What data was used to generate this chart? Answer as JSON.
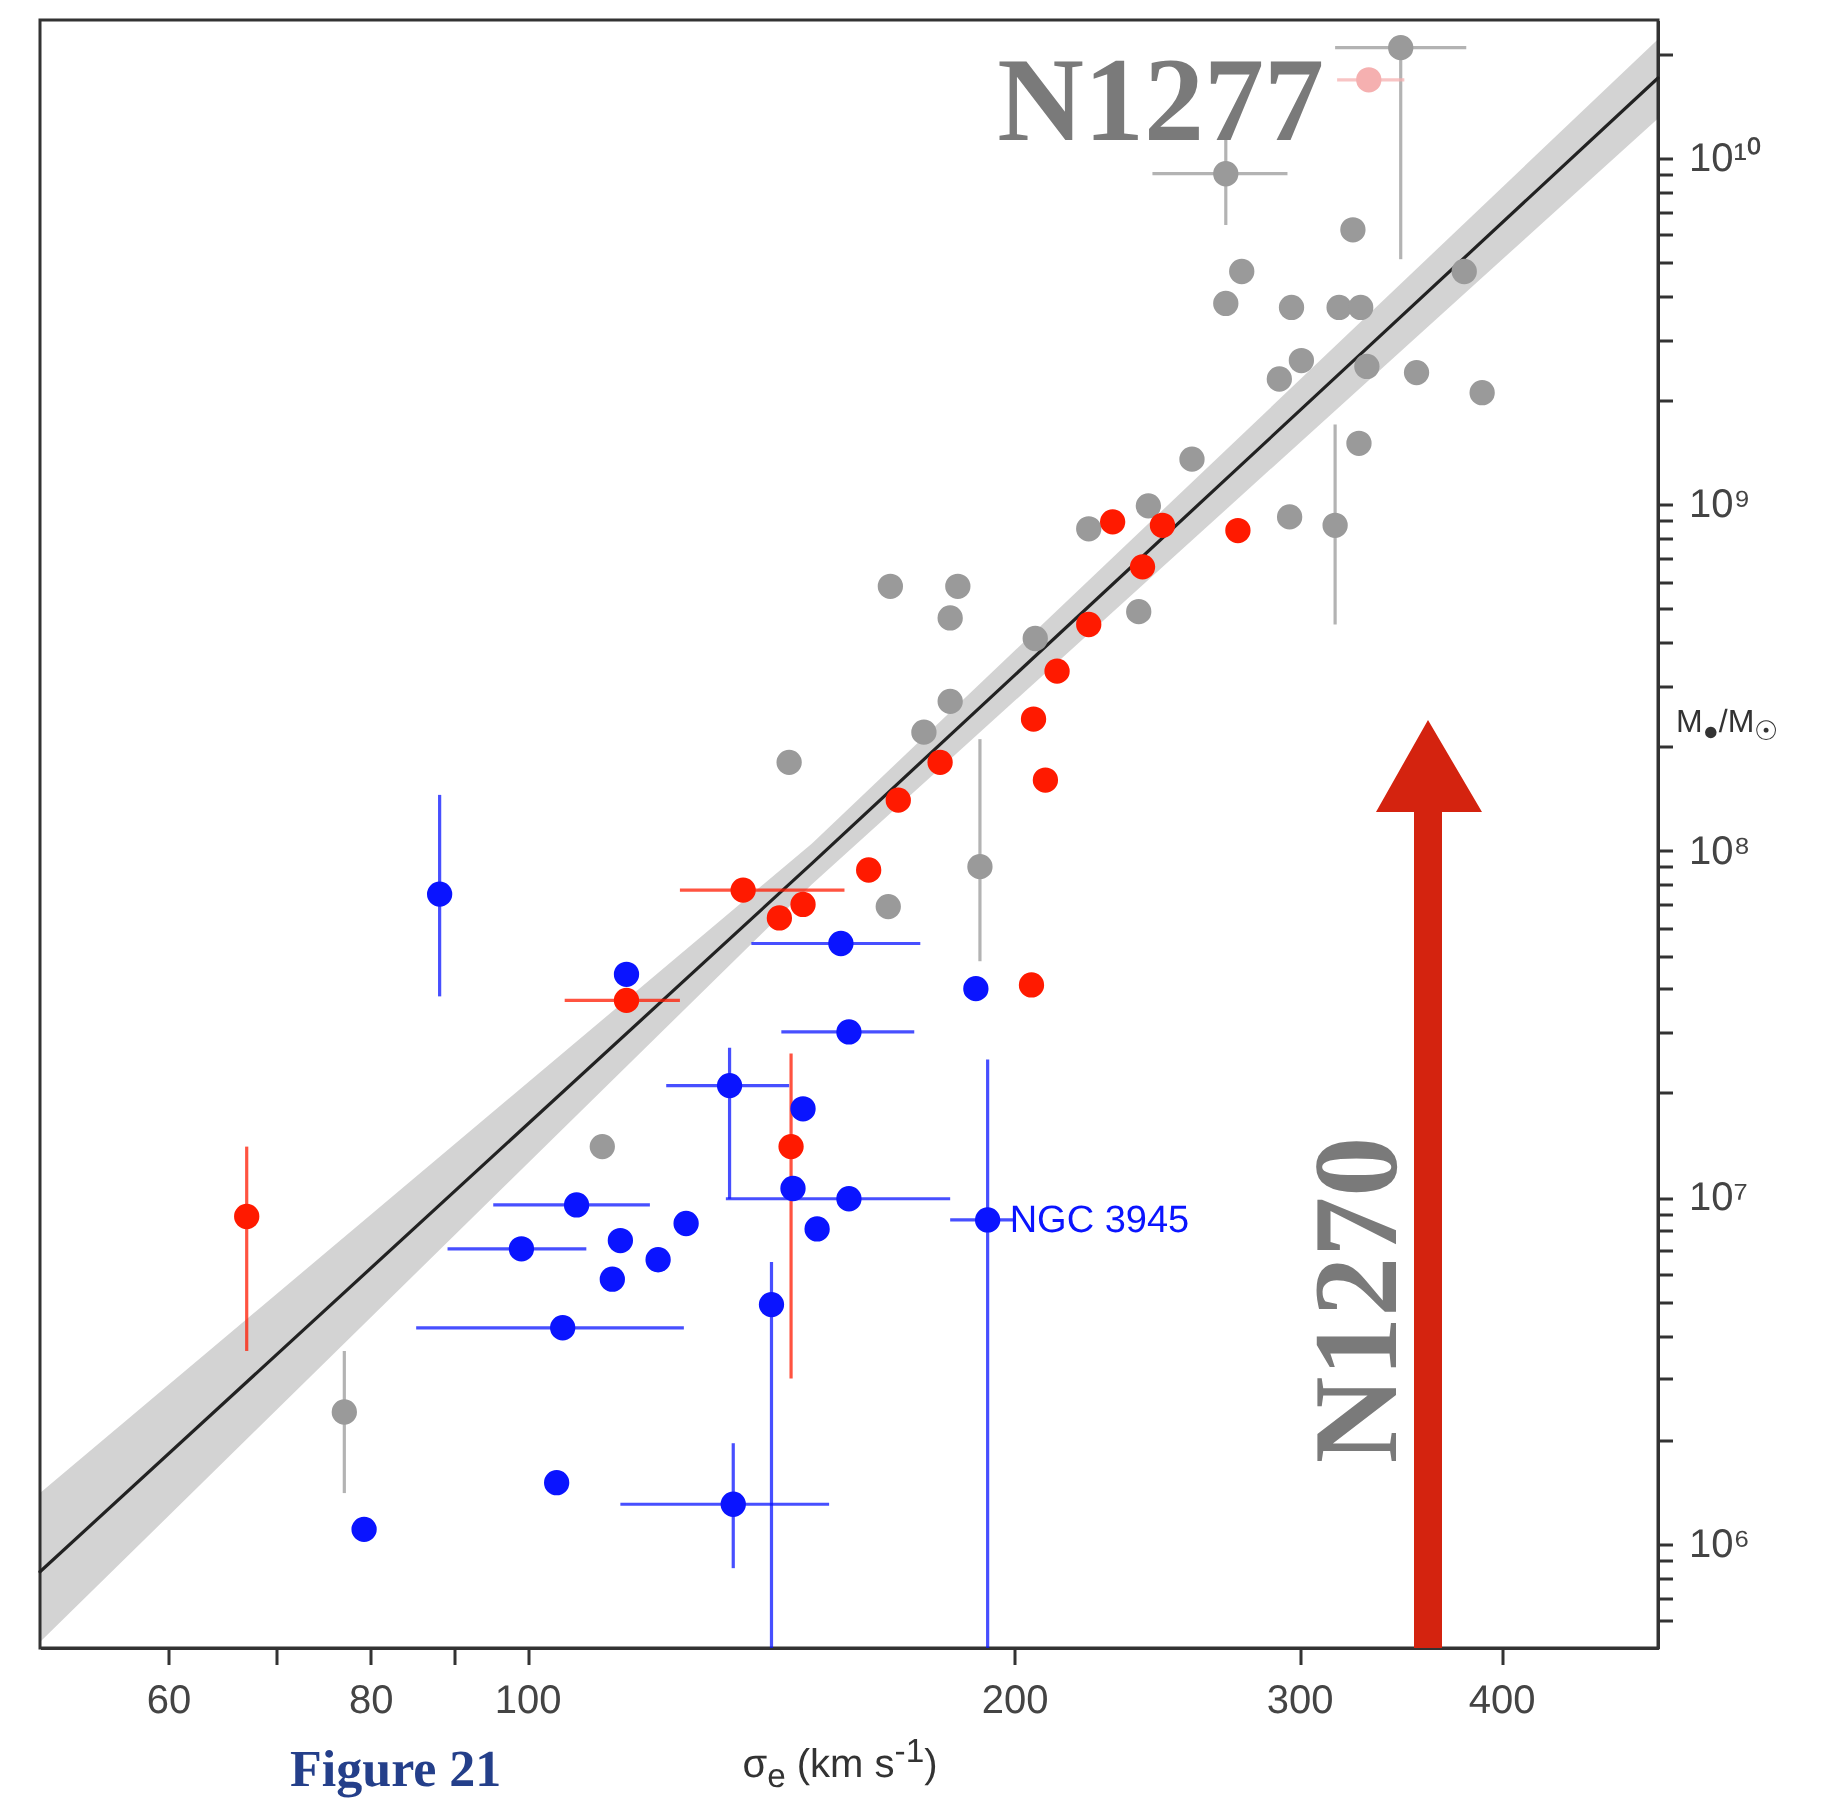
{
  "chart_data": {
    "type": "scatter",
    "xlabel": "σ$_{e}$  (km s$^{-1}$)",
    "ylabel": "M$_{●}$/M$_{☉}$",
    "log": "xy",
    "marker": "circle",
    "xlim": [
      50,
      500
    ],
    "xticks": [
      60,
      {
        "value": 70,
        "label": null
      },
      80,
      {
        "value": 90,
        "label": null
      },
      100,
      200,
      300,
      400
    ],
    "ylim": [
      500000.0,
      25000000000.0
    ],
    "yticks": [
      {
        "value": 600000.0,
        "label": null
      },
      {
        "value": 700000.0,
        "label": null
      },
      {
        "value": 800000.0,
        "label": null
      },
      {
        "value": 900000.0,
        "label": null
      },
      {
        "value": 1000000.0,
        "label": "10⁶"
      },
      {
        "value": 2000000.0,
        "label": null
      },
      {
        "value": 3000000.0,
        "label": null
      },
      {
        "value": 4000000.0,
        "label": null
      },
      {
        "value": 5000000.0,
        "label": null
      },
      {
        "value": 6000000.0,
        "label": null
      },
      {
        "value": 7000000.0,
        "label": null
      },
      {
        "value": 8000000.0,
        "label": null
      },
      {
        "value": 9000000.0,
        "label": null
      },
      {
        "value": 10000000.0,
        "label": "10⁷"
      },
      {
        "value": 20000000.0,
        "label": null
      },
      {
        "value": 30000000.0,
        "label": null
      },
      {
        "value": 40000000.0,
        "label": null
      },
      {
        "value": 50000000.0,
        "label": null
      },
      {
        "value": 60000000.0,
        "label": null
      },
      {
        "value": 70000000.0,
        "label": null
      },
      {
        "value": 80000000.0,
        "label": null
      },
      {
        "value": 90000000.0,
        "label": null
      },
      {
        "value": 100000000.0,
        "label": "10⁸"
      },
      {
        "value": 200000000.0,
        "label": null
      },
      {
        "value": 300000000.0,
        "label": null
      },
      {
        "value": 400000000.0,
        "label": null
      },
      {
        "value": 500000000.0,
        "label": null
      },
      {
        "value": 600000000.0,
        "label": null
      },
      {
        "value": 700000000.0,
        "label": null
      },
      {
        "value": 800000000.0,
        "label": null
      },
      {
        "value": 900000000.0,
        "label": null
      },
      {
        "value": 1000000000.0,
        "label": "10⁹"
      },
      {
        "value": 2000000000.0,
        "label": null
      },
      {
        "value": 3000000000.0,
        "label": null
      },
      {
        "value": 4000000000.0,
        "label": null
      },
      {
        "value": 5000000000.0,
        "label": null
      },
      {
        "value": 6000000000.0,
        "label": null
      },
      {
        "value": 7000000000.0,
        "label": null
      },
      {
        "value": 8000000000.0,
        "label": null
      },
      {
        "value": 9000000000.0,
        "label": null
      },
      {
        "value": 10000000000.0,
        "label": "10¹⁰"
      },
      {
        "value": 20000000000.0,
        "label": null
      }
    ],
    "series": [
      {
        "type": "line",
        "marker": "none",
        "color": "#222222",
        "x": [
          50,
          150,
          500
        ],
        "values": [
          830000.0,
          92000000.0,
          17000000000.0
        ],
        "lower": [
          520000.0,
          80000000.0,
          13000000000.0
        ],
        "upper": [
          1400000.0,
          105000000.0,
          22000000000.0
        ]
      },
      {
        "color": "#9a9a9a",
        "x": [
          346.7,
          270.3,
          323.9,
          276.5,
          270.3,
          296.8,
          317.6,
          327.5,
          301.0,
          291.7,
          330.4,
          354.6,
          389.3,
          326.7,
          379.5,
          257.6,
          296.0,
          315.8,
          242.1,
          222.4,
          238.8,
          206.1,
          184.6,
          167.7,
          182.6,
          182.6,
          175.9,
          190.5,
          167.2,
          145.2,
          111.3,
          77.1
        ],
        "values": [
          20800000000.0,
          9000000000.0,
          6200000000.0,
          4700000000.0,
          3800000000.0,
          3700000000.0,
          3700000000.0,
          3700000000.0,
          2600000000.0,
          2300000000.0,
          2500000000.0,
          2400000000.0,
          2100000000.0,
          1500000000.0,
          4700000000.0,
          1350000000.0,
          920000000.0,
          870000000.0,
          990000000.0,
          850000000.0,
          490000000.0,
          410000000.0,
          580000000.0,
          580000000.0,
          470000000.0,
          270000000.0,
          220000000.0,
          90000000.0,
          69000000.0,
          180000000.0,
          14000000.0,
          2400000.0
        ],
        "errors": [
          [
            5100000000.0,
            20800000000.0
          ],
          [
            6400000000.0,
            11400000000.0
          ],
          null,
          null,
          null,
          null,
          null,
          null,
          null,
          null,
          null,
          null,
          null,
          null,
          null,
          null,
          null,
          [
            450000000.0,
            1700000000.0
          ],
          null,
          null,
          null,
          null,
          null,
          null,
          null,
          null,
          null,
          [
            48000000.0,
            210000000.0
          ],
          null,
          null,
          null,
          [
            1400000.0,
            3600000.0
          ]
        ],
        "xerrors": [
          [
            315.8,
            380.6
          ],
          [
            243.5,
            295.1
          ],
          null,
          null,
          null,
          null,
          null,
          null,
          null,
          null,
          null,
          null,
          null,
          null,
          null,
          null,
          null,
          null,
          null,
          null,
          null,
          null,
          null,
          null,
          null,
          null,
          null,
          null,
          null,
          null,
          null,
          null
        ]
      },
      {
        "color": "#f5b0b0",
        "x": [
          331.3
        ],
        "values": [
          16800000000.0
        ],
        "xerrors": [
          [
            316.7,
            348.5
          ]
        ]
      },
      {
        "color": "#ff1a00",
        "x": [
          67.1,
          115.2,
          136.0,
          143.2,
          148.1,
          145.6,
          162.6,
          169.6,
          180.0,
          205.6,
          209.1,
          212.6,
          222.4,
          230.1,
          240.1,
          247.0,
          275.0,
          205.0
        ],
        "values": [
          8800000.0,
          37000000.0,
          77000000.0,
          64000000.0,
          70000000.0,
          14000000.0,
          88000000.0,
          140000000.0,
          180000000.0,
          240000000.0,
          160000000.0,
          330000000.0,
          450000000.0,
          890000000.0,
          660000000.0,
          870000000.0,
          840000000.0,
          41000000.0
        ],
        "errors": [
          [
            3600000.0,
            14000000.0
          ],
          null,
          null,
          null,
          null,
          [
            3000000.0,
            26000000.0
          ],
          null,
          null,
          null,
          null,
          null,
          null,
          null,
          null,
          null,
          null,
          null,
          null
        ],
        "xerrors": [
          null,
          [
            105.5,
            124.3
          ],
          [
            124.3,
            157.1
          ],
          null,
          null,
          null,
          null,
          null,
          null,
          null,
          null,
          null,
          null,
          null,
          null,
          null,
          null,
          null
        ]
      },
      {
        "color": "#0a14ff",
        "x": [
          88.3,
          115.2,
          156.3,
          158.1,
          133.4,
          148.1,
          146.0,
          158.1,
          151.1,
          107.3,
          125.4,
          99.2,
          114.2,
          120.5,
          112.9,
          141.6,
          105.2,
          104.3,
          79.3,
          134.1,
          189.4,
          192.6
        ],
        "values": [
          75000000.0,
          44000000.0,
          54000000.0,
          30000000.0,
          21000000.0,
          18000000.0,
          10600000.0,
          9900000.0,
          8100000.0,
          9500000.0,
          8400000.0,
          7100000.0,
          7500000.0,
          6600000.0,
          5800000.0,
          4900000.0,
          4200000.0,
          1500000.0,
          1100000.0,
          1300000.0,
          40000000.0,
          8600000.0
        ],
        "errors": [
          [
            38000000.0,
            145000000.0
          ],
          null,
          null,
          null,
          [
            9900000.0,
            27000000.0
          ],
          null,
          null,
          null,
          null,
          null,
          null,
          null,
          null,
          null,
          null,
          [
            500000.0,
            6500000.0
          ],
          null,
          null,
          null,
          [
            850000.0,
            1950000.0
          ],
          null,
          [
            500000.0,
            25000000.0
          ]
        ],
        "xerrors": [
          null,
          null,
          [
            137.6,
            175.0
          ],
          [
            143.6,
            173.5
          ],
          [
            121.9,
            145.2
          ],
          null,
          null,
          [
            132.7,
            182.6
          ],
          null,
          [
            95.3,
            119.1
          ],
          null,
          [
            89.3,
            108.8
          ],
          null,
          null,
          null,
          null,
          [
            85.4,
            125.0
          ],
          null,
          null,
          [
            114.2,
            153.7
          ],
          null,
          [
            182.6,
            199.8
          ]
        ]
      }
    ],
    "annotations": [
      "N1277",
      "N1270",
      "Figure 21",
      {
        "text": "NGC 3945",
        "x": 192.6,
        "y": 8600000.0
      }
    ]
  }
}
